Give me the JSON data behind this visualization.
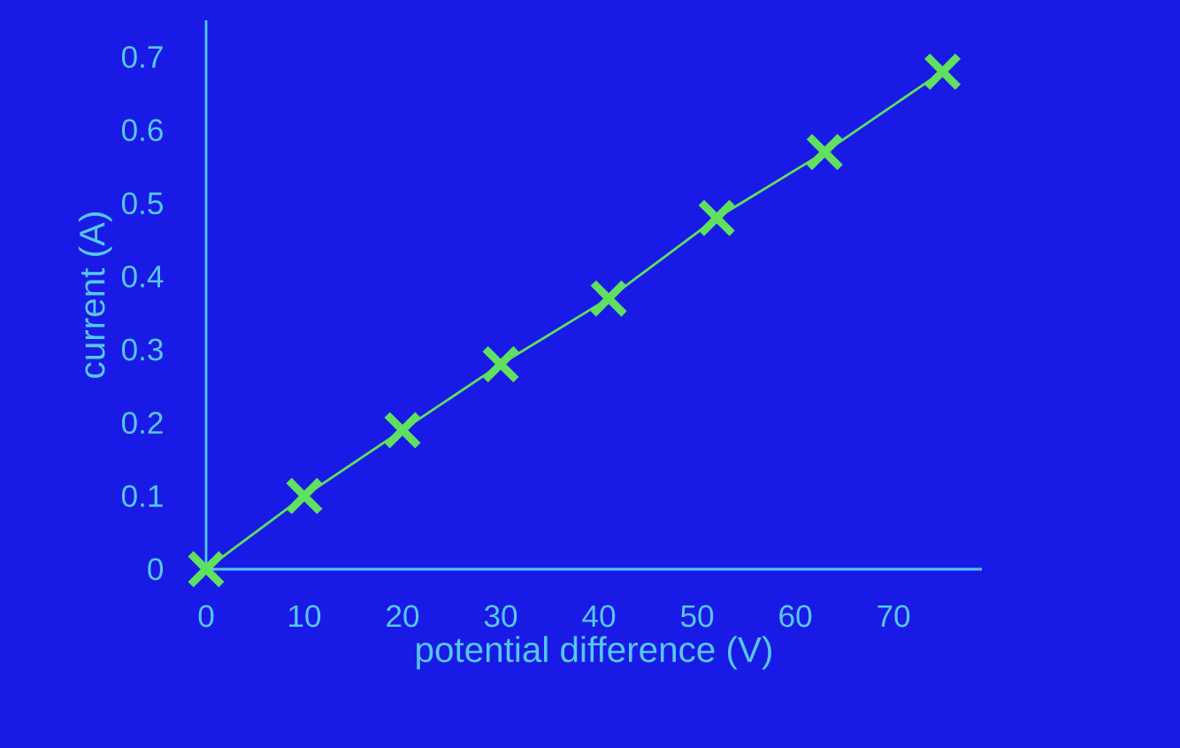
{
  "chart_data": {
    "type": "line",
    "xlabel": "potential difference (V)",
    "ylabel": "current (A)",
    "x": [
      0,
      10,
      20,
      30,
      41,
      52,
      63,
      75
    ],
    "series": [
      {
        "color": "#5fe05f",
        "values": [
          0,
          0.1,
          0.19,
          0.28,
          0.37,
          0.48,
          0.57,
          0.68
        ]
      }
    ],
    "xlim": [
      0,
      79
    ],
    "ylim": [
      0,
      0.75
    ],
    "xticks": [
      0,
      10,
      20,
      30,
      40,
      50,
      60,
      70
    ],
    "yticks": [
      0,
      0.1,
      0.2,
      0.3,
      0.4,
      0.5,
      0.6,
      0.7
    ],
    "marker": "cross"
  }
}
